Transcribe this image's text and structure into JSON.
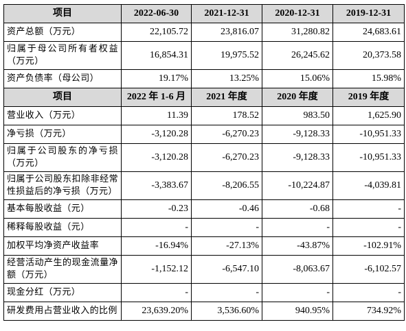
{
  "table": {
    "sections": [
      {
        "header": [
          "项目",
          "2022-06-30",
          "2021-12-31",
          "2020-12-31",
          "2019-12-31"
        ],
        "rows": [
          [
            "资产总额（万元）",
            "22,105.72",
            "23,816.07",
            "31,280.82",
            "24,683.61"
          ],
          [
            "归属于母公司所有者权益（万元）",
            "16,854.31",
            "19,975.52",
            "26,245.62",
            "20,373.58"
          ],
          [
            "资产负债率（母公司）",
            "19.17%",
            "13.25%",
            "15.06%",
            "15.98%"
          ]
        ]
      },
      {
        "header": [
          "项目",
          "2022 年 1-6 月",
          "2021 年度",
          "2020 年度",
          "2019 年度"
        ],
        "rows": [
          [
            "营业收入（万元）",
            "11.39",
            "178.52",
            "983.50",
            "1,625.90"
          ],
          [
            "净亏损（万元）",
            "-3,120.28",
            "-6,270.23",
            "-9,128.33",
            "-10,951.33"
          ],
          [
            "归属于公司股东的净亏损（万元）",
            "-3,120.28",
            "-6,270.23",
            "-9,128.33",
            "-10,951.33"
          ],
          [
            "归属于公司股东扣除非经常性损益后的净亏损（万元）",
            "-3,383.67",
            "-8,206.55",
            "-10,224.87",
            "-4,039.81"
          ],
          [
            "基本每股收益（元）",
            "-0.23",
            "-0.46",
            "-0.68",
            "-"
          ],
          [
            "稀释每股收益（元）",
            "-",
            "-",
            "-",
            "-"
          ],
          [
            "加权平均净资产收益率",
            "-16.94%",
            "-27.13%",
            "-43.87%",
            "-102.91%"
          ],
          [
            "经营活动产生的现金流量净额（万元）",
            "-1,152.12",
            "-6,547.10",
            "-8,063.67",
            "-6,102.57"
          ],
          [
            "现金分红（万元）",
            "-",
            "-",
            "-",
            "-"
          ],
          [
            "研发费用占营业收入的比例",
            "23,639.20%",
            "3,536.60%",
            "940.95%",
            "734.92%"
          ]
        ]
      }
    ]
  }
}
